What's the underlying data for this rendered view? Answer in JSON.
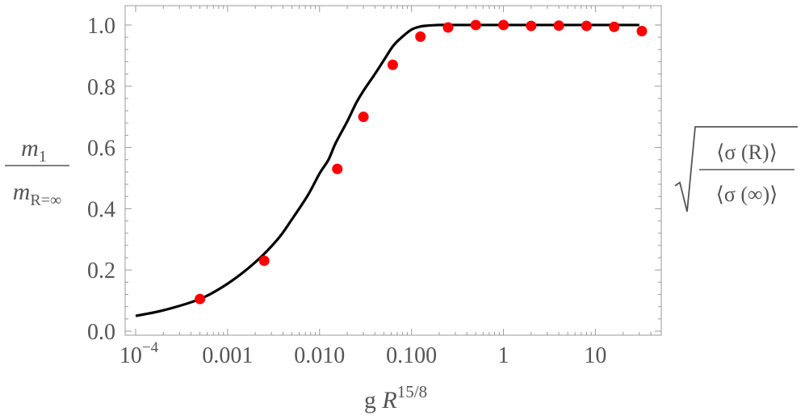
{
  "chart_data": {
    "type": "scatter",
    "x_scale": "log",
    "xlim": [
      0.0001,
      40
    ],
    "ylim": [
      0.0,
      1.05
    ],
    "x_ticks": [
      {
        "value": 0.0001,
        "label": "10",
        "sup": "−4"
      },
      {
        "value": 0.001,
        "label": "0.001"
      },
      {
        "value": 0.01,
        "label": "0.010"
      },
      {
        "value": 0.1,
        "label": "0.100"
      },
      {
        "value": 1,
        "label": "1"
      },
      {
        "value": 10,
        "label": "10"
      }
    ],
    "y_ticks": [
      {
        "value": 0.0,
        "label": "0.0"
      },
      {
        "value": 0.2,
        "label": "0.2"
      },
      {
        "value": 0.4,
        "label": "0.4"
      },
      {
        "value": 0.6,
        "label": "0.6"
      },
      {
        "value": 0.8,
        "label": "0.8"
      },
      {
        "value": 1.0,
        "label": "1.0"
      }
    ],
    "xlabel": {
      "base": "g ",
      "var": "R",
      "sup": "15/8"
    },
    "ylabel_left": {
      "num_var": "m",
      "num_sub": "1",
      "den_var": "m",
      "den_sub": "R=∞"
    },
    "ylabel_right": {
      "num": "⟨σ (R)⟩",
      "num_var": "R",
      "den": "⟨σ (∞)⟩"
    },
    "series": [
      {
        "kind": "line",
        "color": "#000000",
        "x": [
          0.0001,
          0.0002,
          0.0005,
          0.001,
          0.002,
          0.0035,
          0.005,
          0.0075,
          0.01,
          0.0125,
          0.015,
          0.02,
          0.025,
          0.03,
          0.04,
          0.05,
          0.0625,
          0.075,
          0.1,
          0.125,
          0.15,
          0.2,
          0.25,
          0.3,
          0.5,
          1,
          2,
          5,
          10,
          20,
          30
        ],
        "y": [
          0.05,
          0.068,
          0.105,
          0.155,
          0.225,
          0.3,
          0.365,
          0.445,
          0.515,
          0.56,
          0.615,
          0.685,
          0.745,
          0.785,
          0.84,
          0.885,
          0.93,
          0.955,
          0.985,
          0.995,
          0.998,
          1.0,
          1.0,
          1.0,
          1.0,
          1.0,
          1.0,
          1.0,
          1.0,
          1.0,
          1.0
        ]
      },
      {
        "kind": "points",
        "color": "#ff0000",
        "x": [
          0.0005,
          0.0025,
          0.0156,
          0.03,
          0.0625,
          0.125,
          0.25,
          0.5,
          1,
          2,
          4,
          8,
          16,
          32
        ],
        "y": [
          0.105,
          0.23,
          0.53,
          0.7,
          0.87,
          0.962,
          0.992,
          1.0,
          1.0,
          0.997,
          0.998,
          0.997,
          0.994,
          0.98
        ]
      }
    ]
  }
}
